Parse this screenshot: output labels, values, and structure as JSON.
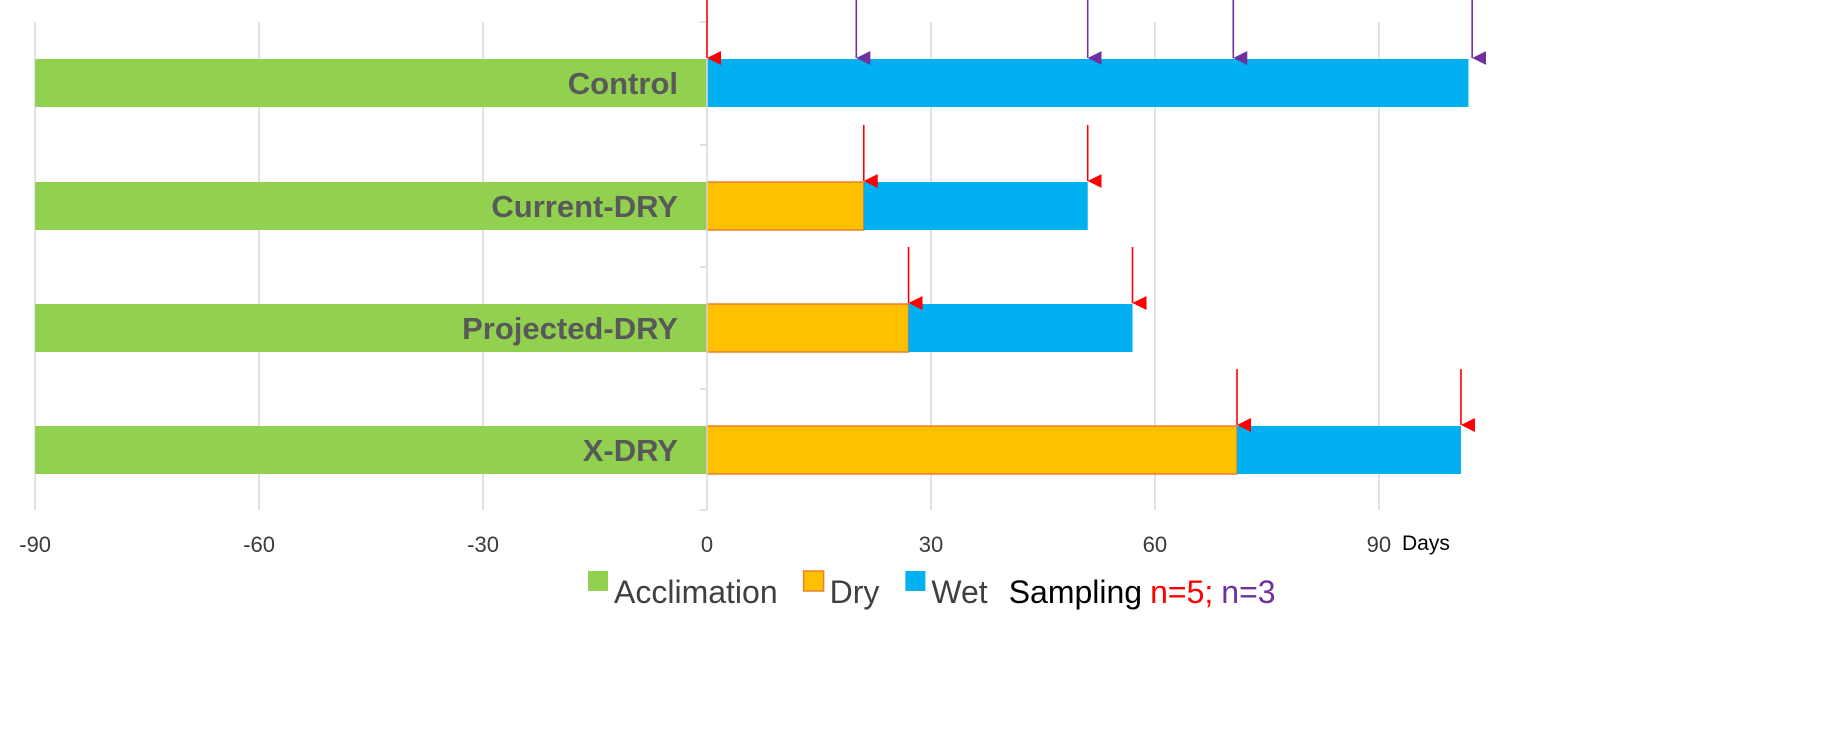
{
  "chart_data": {
    "type": "bar",
    "orientation": "horizontal",
    "stacked": true,
    "xlim": [
      -90,
      100
    ],
    "x_ticks": [
      -90,
      -60,
      -30,
      0,
      30,
      60,
      90
    ],
    "x_unit_label": "Days",
    "grid": true,
    "categories": [
      "Control",
      "Current-DRY",
      "Projected-DRY",
      "X-DRY"
    ],
    "series": [
      {
        "name": "Acclimation",
        "color": "#92D050",
        "segments": [
          [
            -90,
            0
          ],
          [
            -90,
            0
          ],
          [
            -90,
            0
          ],
          [
            -90,
            0
          ]
        ]
      },
      {
        "name": "Dry",
        "color": "#FFC000",
        "segments": [
          null,
          [
            0,
            21
          ],
          [
            0,
            27
          ],
          [
            0,
            71
          ]
        ]
      },
      {
        "name": "Wet",
        "color": "#00B0F0",
        "segments": [
          [
            0,
            102
          ],
          [
            21,
            51
          ],
          [
            27,
            57
          ],
          [
            71,
            101
          ]
        ]
      }
    ],
    "sampling": {
      "label": "Sampling",
      "n5_label": "n=5;",
      "n3_label": "n=3",
      "n5_color": "#FF0000",
      "n3_color": "#7030A0",
      "events": [
        {
          "category": "Control",
          "day": 0,
          "n": 5
        },
        {
          "category": "Control",
          "day": 20,
          "n": 3
        },
        {
          "category": "Control",
          "day": 51,
          "n": 3
        },
        {
          "category": "Control",
          "day": 70.5,
          "n": 3
        },
        {
          "category": "Control",
          "day": 102.5,
          "n": 3
        },
        {
          "category": "Current-DRY",
          "day": 21,
          "n": 5
        },
        {
          "category": "Current-DRY",
          "day": 51,
          "n": 5
        },
        {
          "category": "Projected-DRY",
          "day": 27,
          "n": 5
        },
        {
          "category": "Projected-DRY",
          "day": 57,
          "n": 5
        },
        {
          "category": "X-DRY",
          "day": 71,
          "n": 5
        },
        {
          "category": "X-DRY",
          "day": 101,
          "n": 5
        }
      ]
    },
    "legend": {
      "position": "bottom",
      "items": [
        {
          "label": "Acclimation",
          "color": "#92D050"
        },
        {
          "label": "Dry",
          "color": "#FFC000",
          "border": "#ED7D31"
        },
        {
          "label": "Wet",
          "color": "#00B0F0"
        }
      ]
    }
  }
}
